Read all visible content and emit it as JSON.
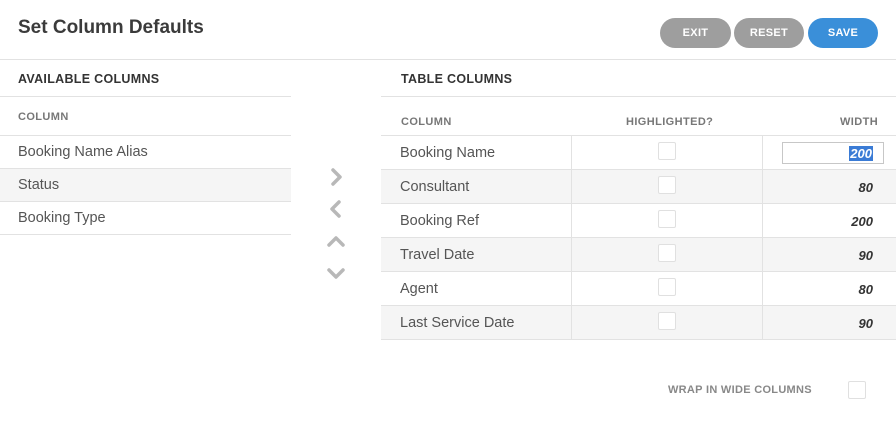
{
  "header": {
    "title": "Set Column Defaults",
    "buttons": {
      "exit": "EXIT",
      "reset": "RESET",
      "save": "SAVE"
    }
  },
  "available": {
    "title": "AVAILABLE COLUMNS",
    "column_header": "COLUMN",
    "items": [
      "Booking Name Alias",
      "Status",
      "Booking Type"
    ]
  },
  "arrows": {
    "right": "chevron-right-icon",
    "left": "chevron-left-icon",
    "up": "chevron-up-icon",
    "down": "chevron-down-icon"
  },
  "table": {
    "title": "TABLE COLUMNS",
    "headers": {
      "column": "COLUMN",
      "highlighted": "HIGHLIGHTED?",
      "width": "WIDTH"
    },
    "rows": [
      {
        "name": "Booking Name",
        "highlighted": false,
        "width": "200",
        "editing": true
      },
      {
        "name": "Consultant",
        "highlighted": false,
        "width": "80"
      },
      {
        "name": "Booking Ref",
        "highlighted": false,
        "width": "200"
      },
      {
        "name": "Travel Date",
        "highlighted": false,
        "width": "90"
      },
      {
        "name": "Agent",
        "highlighted": false,
        "width": "80"
      },
      {
        "name": "Last Service Date",
        "highlighted": false,
        "width": "90"
      }
    ]
  },
  "options": {
    "wrap_label": "WRAP IN WIDE COLUMNS",
    "wrap_checked": false
  },
  "colors": {
    "primary": "#3a8fd9",
    "secondary": "#9e9e9e",
    "selection": "#3a7bd5"
  }
}
